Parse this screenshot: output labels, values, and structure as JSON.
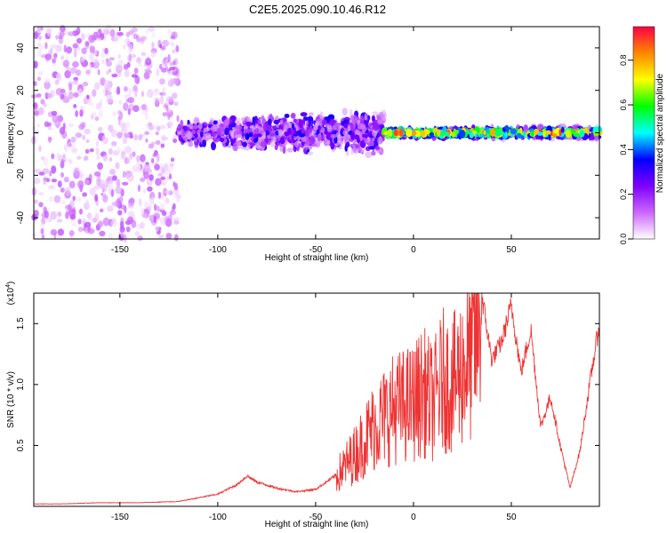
{
  "title": "C2E5.2025.090.10.46.R12",
  "chart_data": [
    {
      "type": "heatmap",
      "panel": "top",
      "xlabel": "Height of straight line (km)",
      "ylabel": "Frequency (Hz)",
      "xlim": [
        -194,
        95
      ],
      "ylim": [
        -50,
        50
      ],
      "x_ticks": [
        -150,
        -100,
        -50,
        0,
        50
      ],
      "y_ticks": [
        -40,
        -20,
        0,
        20,
        40
      ],
      "colorbar": {
        "label": "Normalized spectral amplitude",
        "range": [
          0,
          0.95
        ],
        "ticks": [
          0.0,
          0.2,
          0.4,
          0.6,
          0.8
        ],
        "colormap": [
          "#ffffff",
          "#cc66ff",
          "#7f00ff",
          "#0000ff",
          "#00ffff",
          "#00ff00",
          "#ffff00",
          "#ff8800",
          "#ff0044"
        ]
      },
      "regions": [
        {
          "x_range": [
            -194,
            -120
          ],
          "freq_spread": 50,
          "peak_amplitude": 0.15
        },
        {
          "x_range": [
            -120,
            -15
          ],
          "freq_spread": 10,
          "peak_amplitude": 0.35
        },
        {
          "x_range": [
            -15,
            95
          ],
          "freq_spread": 3,
          "peak_amplitude": 0.95
        }
      ]
    },
    {
      "type": "line",
      "panel": "bottom",
      "xlabel": "Height of straight line (km)",
      "ylabel": "SNR (10 * v/v)",
      "y_multiplier_label": "(x10",
      "y_multiplier_exp": "4",
      "y_multiplier_close": ")",
      "xlim": [
        -194,
        95
      ],
      "ylim": [
        0,
        1.75
      ],
      "x_ticks": [
        -150,
        -100,
        -50,
        0,
        50
      ],
      "y_ticks": [
        0.5,
        1.0,
        1.5
      ],
      "y_tick_labels": [
        "0.5",
        "1.0",
        "1.5"
      ],
      "color": "#ee3333",
      "series": [
        {
          "x": [
            -194,
            -180,
            -160,
            -140,
            -120,
            -100,
            -90,
            -85,
            -80,
            -70,
            -60,
            -50,
            -40,
            -30,
            -20,
            -10,
            0,
            5,
            10,
            15,
            20,
            25,
            30,
            35,
            40,
            45,
            50,
            55,
            60,
            65,
            70,
            75,
            80,
            85,
            90,
            95
          ],
          "y": [
            0.02,
            0.02,
            0.03,
            0.03,
            0.04,
            0.1,
            0.18,
            0.25,
            0.2,
            0.15,
            0.12,
            0.14,
            0.25,
            0.45,
            0.7,
            0.85,
            0.9,
            1.0,
            0.9,
            1.1,
            1.05,
            1.2,
            1.3,
            1.72,
            1.2,
            1.35,
            1.65,
            1.1,
            1.45,
            0.65,
            0.9,
            0.5,
            0.15,
            0.45,
            1.0,
            1.5
          ]
        }
      ]
    }
  ]
}
